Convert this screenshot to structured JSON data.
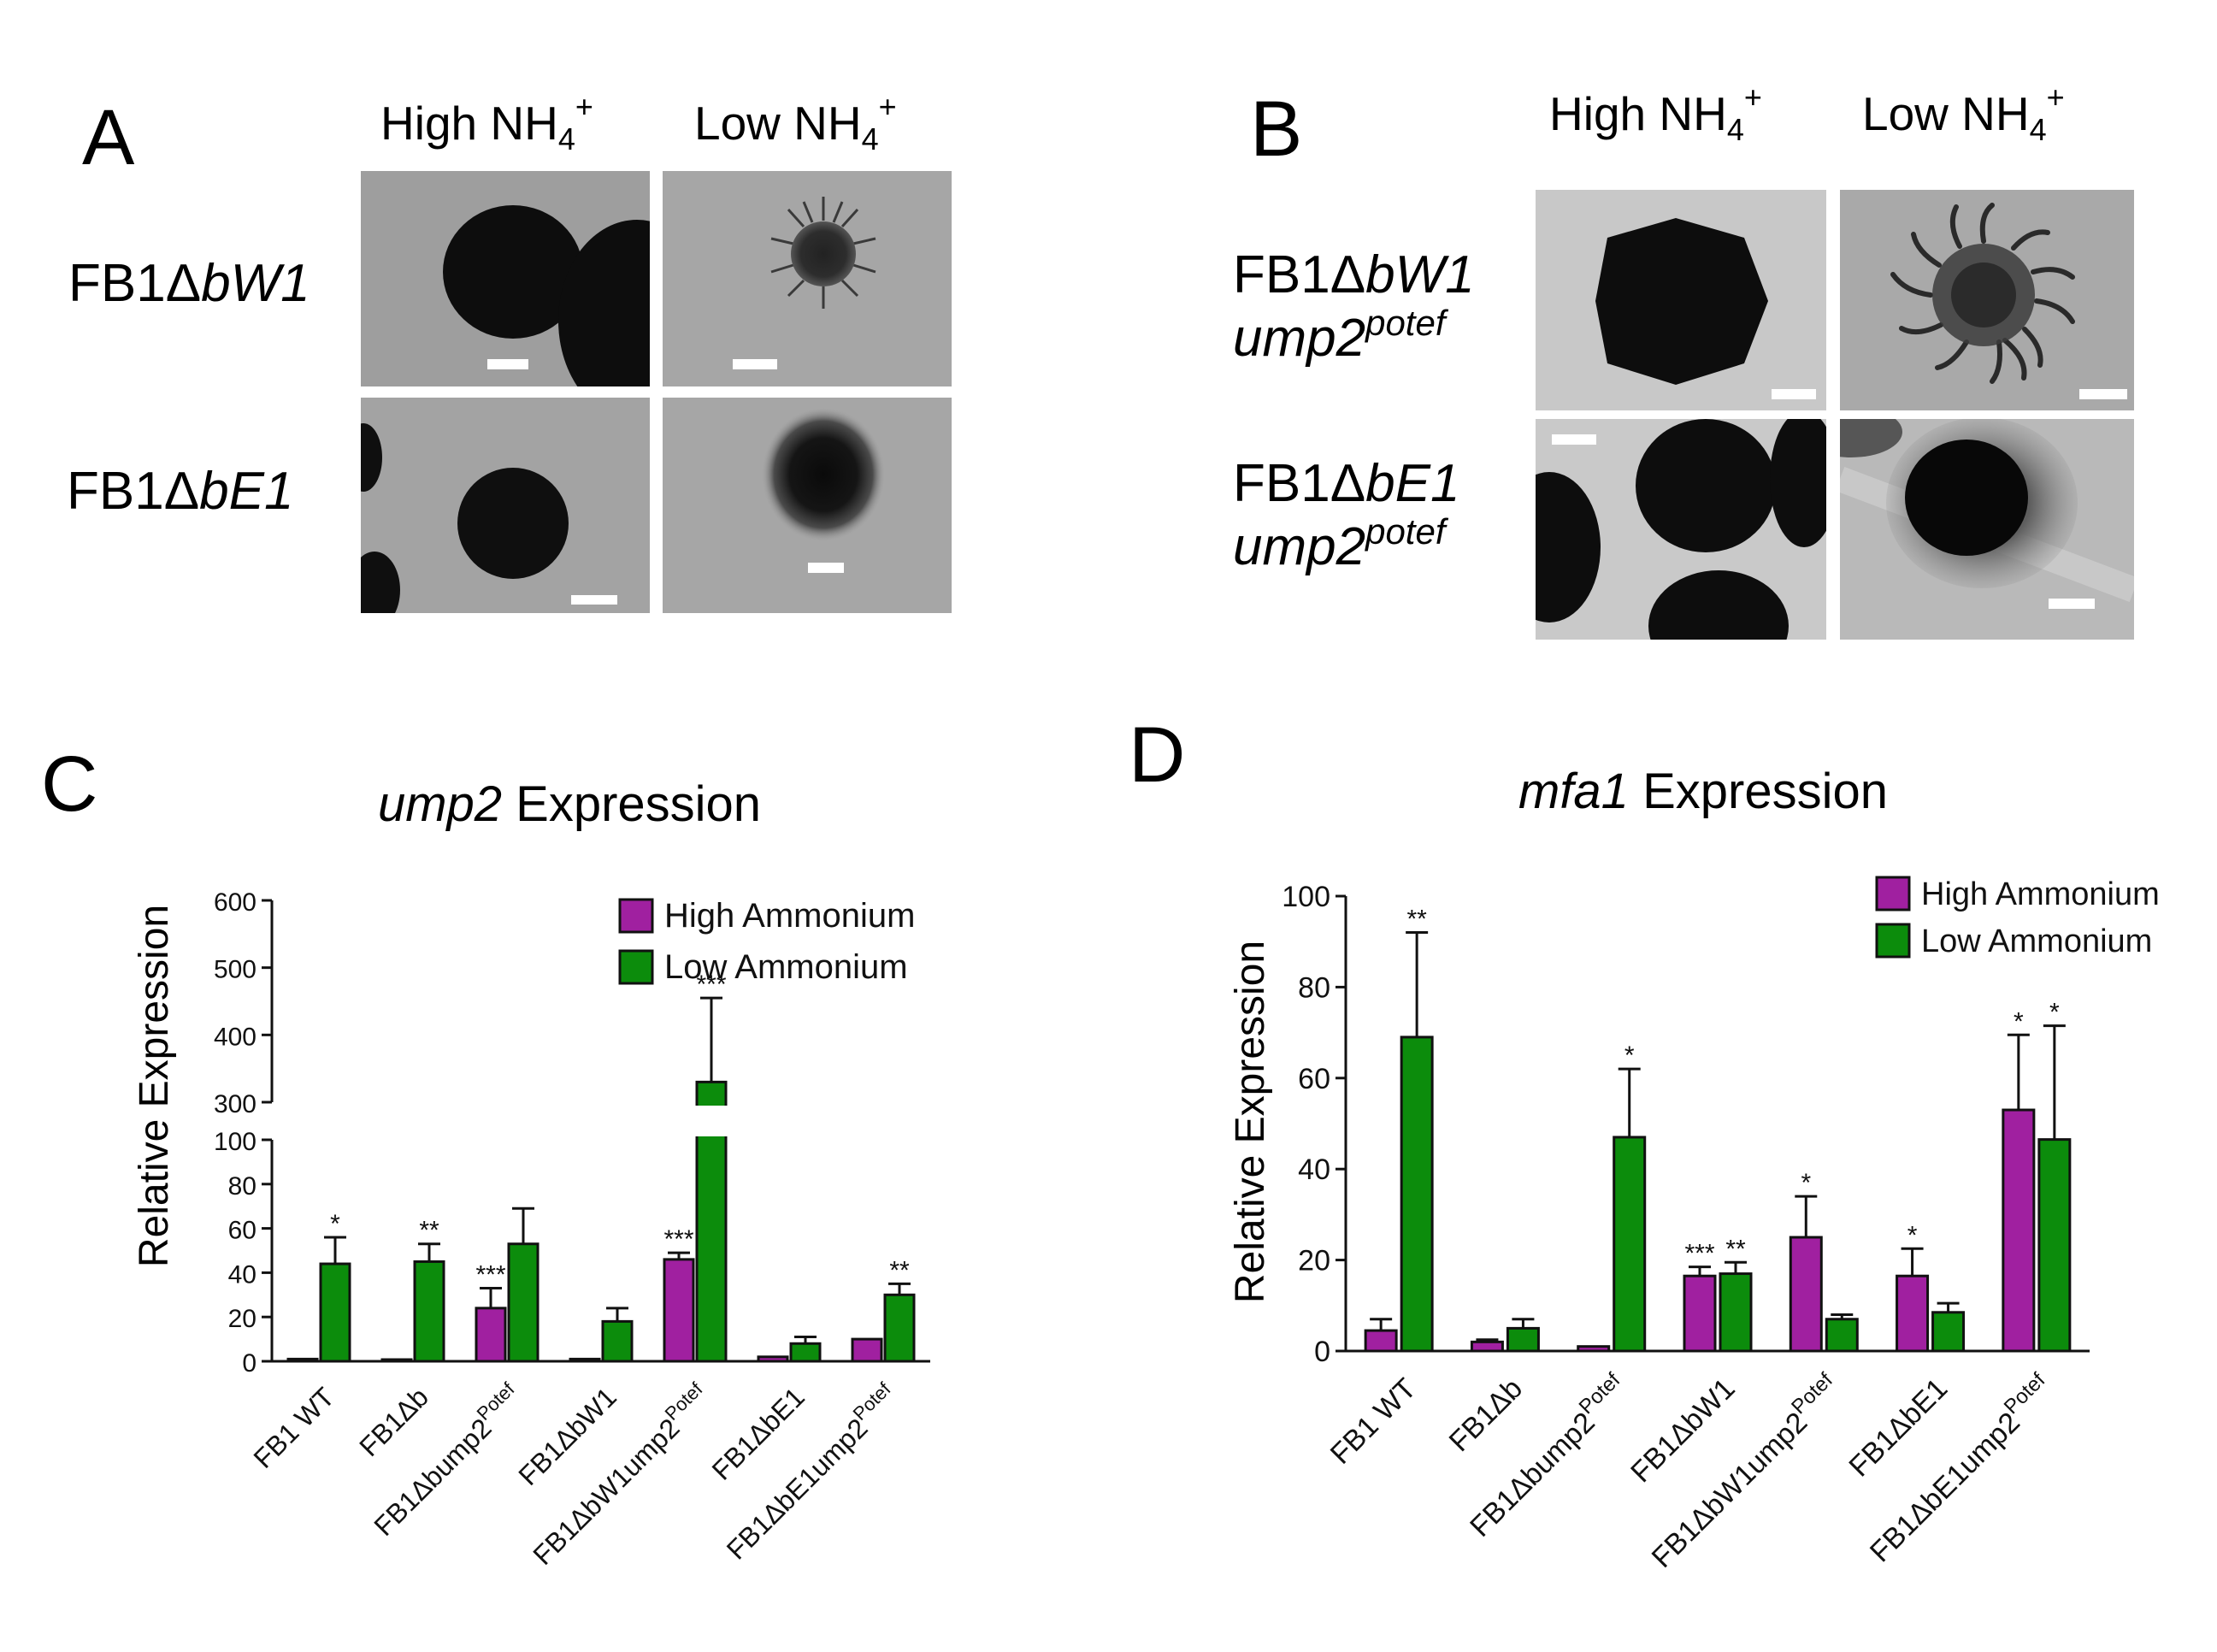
{
  "colors": {
    "high": "#A020A0",
    "low": "#0C8C0C",
    "axis": "#111111"
  },
  "panels": {
    "A": {
      "label": "A",
      "col_headers": [
        {
          "base": "High NH",
          "sub": "4",
          "sup": "+"
        },
        {
          "base": "Low NH",
          "sub": "4",
          "sup": "+"
        }
      ],
      "rows": [
        {
          "prefix": "FB1Δ",
          "gene": "bW1"
        },
        {
          "prefix": "FB1Δ",
          "gene": "bE1"
        }
      ]
    },
    "B": {
      "label": "B",
      "col_headers": [
        {
          "base": "High NH",
          "sub": "4",
          "sup": "+"
        },
        {
          "base": "Low NH",
          "sub": "4",
          "sup": "+"
        }
      ],
      "rows": [
        {
          "prefix": "FB1Δ",
          "gene": "bW1",
          "line2": "ump2",
          "line2_sup": "potef"
        },
        {
          "prefix": "FB1Δ",
          "gene": "bE1",
          "line2": "ump2",
          "line2_sup": "potef"
        }
      ]
    }
  },
  "chart_data": [
    {
      "panel": "C",
      "type": "bar",
      "title": {
        "italic": "ump2",
        "rest": " Expression"
      },
      "ylabel": "Relative Expression",
      "y_axis_break": {
        "lower": [
          0,
          100
        ],
        "upper": [
          300,
          600
        ]
      },
      "yticks_lower": [
        "0",
        "20",
        "40",
        "60",
        "80",
        "100"
      ],
      "yticks_upper": [
        "300",
        "400",
        "500",
        "600"
      ],
      "categories": [
        {
          "base": "FB1 WT",
          "sup": ""
        },
        {
          "base": "FB1Δb",
          "sup": ""
        },
        {
          "base": "FB1Δbump2",
          "sup": "Potef"
        },
        {
          "base": "FB1ΔbW1",
          "sup": ""
        },
        {
          "base": "FB1ΔbW1ump2",
          "sup": "Potef"
        },
        {
          "base": "FB1ΔbE1",
          "sup": ""
        },
        {
          "base": "FB1ΔbE1ump2",
          "sup": "Potef"
        }
      ],
      "series": [
        {
          "name": "High Ammonium",
          "values": [
            1,
            0.5,
            24,
            1,
            46,
            2,
            10
          ],
          "errors": [
            0,
            0,
            9,
            0,
            3,
            0,
            0
          ],
          "sig": [
            "",
            "",
            "***",
            "",
            "***",
            "",
            ""
          ]
        },
        {
          "name": "Low Ammonium",
          "values": [
            44,
            45,
            53,
            18,
            330,
            8,
            30
          ],
          "errors": [
            12,
            8,
            16,
            6,
            125,
            3,
            5
          ],
          "sig": [
            "*",
            "**",
            "",
            "",
            "***",
            "",
            "**"
          ]
        }
      ]
    },
    {
      "panel": "D",
      "type": "bar",
      "title": {
        "italic": "mfa1",
        "rest": " Expression"
      },
      "ylabel": "Relative Expression",
      "ylim": [
        0,
        100
      ],
      "yticks": [
        "0",
        "20",
        "40",
        "60",
        "80",
        "100"
      ],
      "categories": [
        {
          "base": "FB1 WT",
          "sup": ""
        },
        {
          "base": "FB1Δb",
          "sup": ""
        },
        {
          "base": "FB1Δbump2",
          "sup": "Potef"
        },
        {
          "base": "FB1ΔbW1",
          "sup": ""
        },
        {
          "base": "FB1ΔbW1ump2",
          "sup": "Potef"
        },
        {
          "base": "FB1ΔbE1",
          "sup": ""
        },
        {
          "base": "FB1ΔbE1ump2",
          "sup": "Potef"
        }
      ],
      "series": [
        {
          "name": "High Ammonium",
          "values": [
            4.5,
            2,
            1,
            16.5,
            25,
            16.5,
            53
          ],
          "errors": [
            2.5,
            0.5,
            0,
            2,
            9,
            6,
            16.5
          ],
          "sig": [
            "",
            "",
            "",
            "***",
            "*",
            "*",
            "*"
          ]
        },
        {
          "name": "Low Ammonium",
          "values": [
            69,
            5,
            47,
            17,
            7,
            8.5,
            46.5
          ],
          "errors": [
            23,
            2,
            15,
            2.5,
            1,
            2,
            25
          ],
          "sig": [
            "**",
            "",
            "*",
            "**",
            "",
            "",
            "*"
          ]
        }
      ]
    }
  ]
}
